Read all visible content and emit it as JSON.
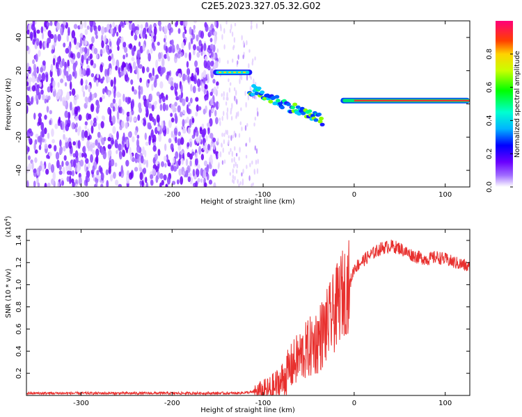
{
  "title": "C2E5.2023.327.05.32.G02",
  "chart_data": [
    {
      "type": "heatmap",
      "title": "C2E5.2023.327.05.32.G02",
      "xlabel": "Height of straight line (km)",
      "ylabel": "Frequency (Hz)",
      "xlim": [
        -360,
        127
      ],
      "ylim": [
        -50,
        50
      ],
      "xticks": [
        -300,
        -200,
        -100,
        0,
        100
      ],
      "yticks": [
        -40,
        -20,
        0,
        20,
        40
      ],
      "colorbar": {
        "label": "Normalized spectral amplitude",
        "range": [
          0,
          1
        ],
        "ticks": [
          0.0,
          0.2,
          0.4,
          0.6,
          0.8
        ]
      },
      "features": {
        "noise_region_x": [
          -360,
          -105
        ],
        "dense_noise_x": [
          -360,
          -150
        ],
        "signal_track_segment_1": {
          "x": [
            -155,
            -112
          ],
          "y": 19
        },
        "signal_track_curve": {
          "x": [
            -115,
            -35
          ],
          "y_start": 9,
          "y_end": -10
        },
        "carrier_line": {
          "x": [
            -15,
            127
          ],
          "y": 2
        }
      }
    },
    {
      "type": "line",
      "xlabel": "Height of straight line (km)",
      "ylabel": "SNR (10 * v/v)",
      "multiplier": "(x10^4)",
      "xlim": [
        -360,
        127
      ],
      "ylim": [
        0,
        1.5
      ],
      "xticks": [
        -300,
        -200,
        -100,
        0,
        100
      ],
      "yticks": [
        0.2,
        0.4,
        0.6,
        0.8,
        1.0,
        1.2,
        1.4
      ],
      "color": "#e8302e",
      "series_profile": {
        "x": [
          -360,
          -300,
          -200,
          -130,
          -110,
          -100,
          -90,
          -80,
          -70,
          -60,
          -50,
          -40,
          -30,
          -20,
          -15,
          -10,
          -5,
          0,
          10,
          20,
          30,
          40,
          50,
          60,
          70,
          80,
          90,
          100,
          110,
          120,
          127
        ],
        "y": [
          0.02,
          0.02,
          0.02,
          0.02,
          0.03,
          0.03,
          0.05,
          0.12,
          0.25,
          0.35,
          0.42,
          0.5,
          0.62,
          0.78,
          0.9,
          0.95,
          1.0,
          1.15,
          1.22,
          1.28,
          1.33,
          1.35,
          1.33,
          1.28,
          1.25,
          1.23,
          1.25,
          1.23,
          1.2,
          1.18,
          1.15
        ]
      }
    }
  ]
}
